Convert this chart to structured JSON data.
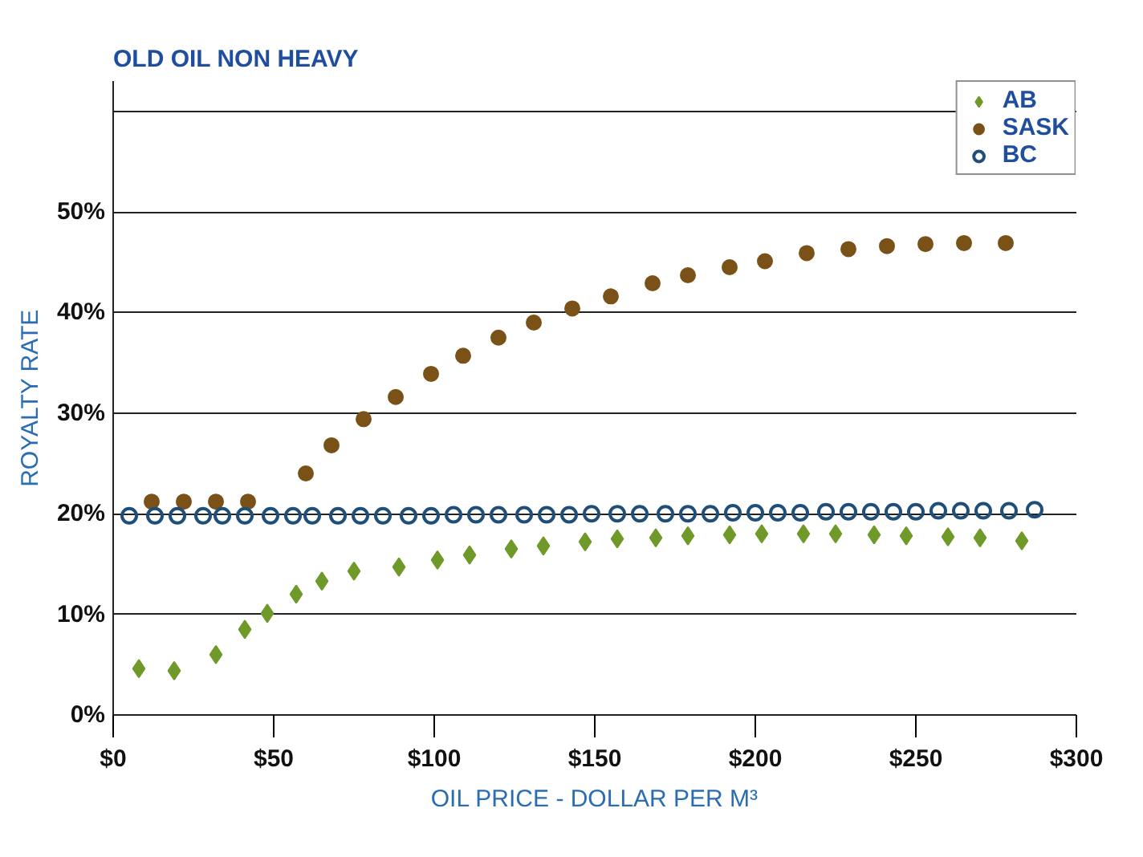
{
  "chart_data": {
    "type": "scatter",
    "title": "OLD OIL NON HEAVY",
    "xlabel": "OIL PRICE - DOLLAR PER M³",
    "ylabel": "ROYALTY RATE",
    "xlim": [
      0,
      300
    ],
    "ylim": [
      0,
      63
    ],
    "xticks": [
      {
        "value": 0,
        "label": "$0"
      },
      {
        "value": 50,
        "label": "$50"
      },
      {
        "value": 100,
        "label": "$100"
      },
      {
        "value": 150,
        "label": "$150"
      },
      {
        "value": 200,
        "label": "$200"
      },
      {
        "value": 250,
        "label": "$250"
      },
      {
        "value": 300,
        "label": "$300"
      }
    ],
    "yticks": [
      {
        "value": 0,
        "label": "0%"
      },
      {
        "value": 10,
        "label": "10%"
      },
      {
        "value": 20,
        "label": "20%"
      },
      {
        "value": 30,
        "label": "30%"
      },
      {
        "value": 40,
        "label": "40%"
      },
      {
        "value": 50,
        "label": "50%"
      },
      {
        "value": 60,
        "label": null
      }
    ],
    "grid": "y",
    "legend": "top right",
    "series": [
      {
        "name": "AB",
        "color": "#6f9a2a",
        "marker": "diamond",
        "x": [
          8,
          19,
          32,
          41,
          48,
          57,
          65,
          75,
          89,
          101,
          111,
          124,
          134,
          147,
          157,
          169,
          179,
          192,
          202,
          215,
          225,
          237,
          247,
          260,
          270,
          283
        ],
        "values": [
          4.6,
          4.4,
          6.0,
          8.5,
          10.1,
          12.0,
          13.3,
          14.3,
          14.7,
          15.4,
          15.9,
          16.5,
          16.8,
          17.2,
          17.5,
          17.6,
          17.8,
          17.9,
          18.0,
          18.0,
          18.0,
          17.9,
          17.8,
          17.7,
          17.6,
          17.3
        ]
      },
      {
        "name": "SASK",
        "color": "#7a5218",
        "marker": "circle",
        "x": [
          12,
          22,
          32,
          42,
          60,
          68,
          78,
          88,
          99,
          109,
          120,
          131,
          143,
          155,
          168,
          179,
          192,
          203,
          216,
          229,
          241,
          253,
          265,
          278
        ],
        "values": [
          21.2,
          21.2,
          21.2,
          21.2,
          24.0,
          26.8,
          29.4,
          31.6,
          33.9,
          35.7,
          37.5,
          39.0,
          40.4,
          41.6,
          42.9,
          43.7,
          44.5,
          45.1,
          45.9,
          46.3,
          46.6,
          46.8,
          46.9,
          46.9
        ]
      },
      {
        "name": "BC",
        "color": "#1f4e79",
        "marker": "open_circle",
        "x": [
          5,
          13,
          20,
          28,
          34,
          41,
          49,
          56,
          62,
          70,
          77,
          84,
          92,
          99,
          106,
          113,
          120,
          128,
          135,
          142,
          149,
          157,
          164,
          172,
          179,
          186,
          193,
          200,
          207,
          214,
          222,
          229,
          236,
          243,
          250,
          257,
          264,
          271,
          279,
          287
        ],
        "values": [
          19.8,
          19.8,
          19.8,
          19.8,
          19.8,
          19.8,
          19.8,
          19.8,
          19.8,
          19.8,
          19.8,
          19.8,
          19.8,
          19.8,
          19.9,
          19.9,
          19.9,
          19.9,
          19.9,
          19.9,
          20.0,
          20.0,
          20.0,
          20.0,
          20.0,
          20.0,
          20.1,
          20.1,
          20.1,
          20.1,
          20.2,
          20.2,
          20.2,
          20.2,
          20.2,
          20.3,
          20.3,
          20.3,
          20.3,
          20.4
        ]
      }
    ]
  }
}
